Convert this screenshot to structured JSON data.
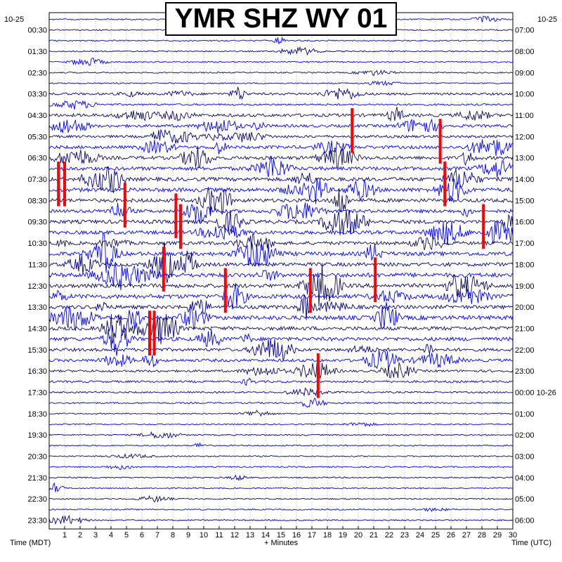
{
  "title": "YMR SHZ WY 01",
  "date_left": "10-25",
  "date_right": "10-25",
  "x_axis_label_left": "Time (MDT)",
  "x_axis_label_center": "+ Minutes",
  "x_axis_label_right": "Time (UTC)",
  "colors": {
    "trace_dark": "#0a0a5a",
    "trace_mid": "#00007a",
    "trace_blue": "#0000ff",
    "clipped": "#ff0000",
    "grid": "#9a9a9a"
  },
  "chart_data": {
    "type": "helicorder",
    "title": "YMR SHZ WY 01",
    "xlabel": "+ Minutes",
    "xlim": [
      0,
      30
    ],
    "x_ticks": [
      1,
      2,
      3,
      4,
      5,
      6,
      7,
      8,
      9,
      10,
      11,
      12,
      13,
      14,
      15,
      16,
      17,
      18,
      19,
      20,
      21,
      22,
      23,
      24,
      25,
      26,
      27,
      28,
      29,
      30
    ],
    "rows_per_hour": 2,
    "row_count": 48,
    "left_time_labels": [
      "00:30",
      "01:30",
      "02:30",
      "03:30",
      "04:30",
      "05:30",
      "06:30",
      "07:30",
      "08:30",
      "09:30",
      "10:30",
      "11:30",
      "12:30",
      "13:30",
      "14:30",
      "15:30",
      "16:30",
      "17:30",
      "18:30",
      "19:30",
      "20:30",
      "21:30",
      "22:30",
      "23:30"
    ],
    "right_time_labels": [
      "07:00",
      "08:00",
      "09:00",
      "10:00",
      "11:00",
      "12:00",
      "13:00",
      "14:00",
      "15:00",
      "16:00",
      "17:00",
      "18:00",
      "19:00",
      "20:00",
      "21:00",
      "22:00",
      "23:00",
      "00:00 10-26",
      "01:00",
      "02:00",
      "03:00",
      "04:00",
      "05:00",
      "06:00"
    ],
    "left_timezone": "Time (MDT)",
    "right_timezone": "Time (UTC)",
    "clipped_events": [
      {
        "row": 14,
        "minute": 0.6
      },
      {
        "row": 14,
        "minute": 1.0
      },
      {
        "row": 16,
        "minute": 4.9
      },
      {
        "row": 17,
        "minute": 8.2
      },
      {
        "row": 18,
        "minute": 8.5
      },
      {
        "row": 22,
        "minute": 7.4
      },
      {
        "row": 23,
        "minute": 21.1
      },
      {
        "row": 24,
        "minute": 11.4
      },
      {
        "row": 24,
        "minute": 16.9
      },
      {
        "row": 28,
        "minute": 6.5
      },
      {
        "row": 28,
        "minute": 6.8
      },
      {
        "row": 32,
        "minute": 17.4
      },
      {
        "row": 9,
        "minute": 19.6
      },
      {
        "row": 10,
        "minute": 25.3
      },
      {
        "row": 14,
        "minute": 25.6
      },
      {
        "row": 18,
        "minute": 28.1
      }
    ]
  }
}
